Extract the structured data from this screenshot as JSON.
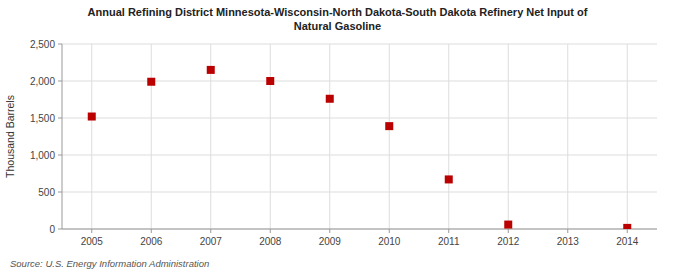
{
  "chart_data": {
    "type": "scatter",
    "title": "Annual Refining District Minnesota-Wisconsin-North Dakota-South Dakota Refinery Net Input of\nNatural Gasoline",
    "y_label": "Thousand Barrels",
    "annotations": [
      "Source: U.S. Energy Information Administration"
    ],
    "x": [
      2005,
      2006,
      2007,
      2008,
      2009,
      2010,
      2011,
      2012,
      2014
    ],
    "values": [
      1520,
      1990,
      2150,
      2000,
      1760,
      1390,
      670,
      60,
      15
    ],
    "color": "#bb0000",
    "marker": "square",
    "xlim": [
      2004.5,
      2014.5
    ],
    "ylim": [
      0,
      2500
    ],
    "xticks": [
      2005,
      2006,
      2007,
      2008,
      2009,
      2010,
      2011,
      2012,
      2013,
      2014
    ],
    "yticks": [
      0,
      500,
      {
        "value": 1000,
        "label": "1,000"
      },
      {
        "value": 1500,
        "label": "1,500"
      },
      {
        "value": 2000,
        "label": "2,000"
      },
      {
        "value": 2500,
        "label": "2,500"
      }
    ],
    "grid": true
  }
}
